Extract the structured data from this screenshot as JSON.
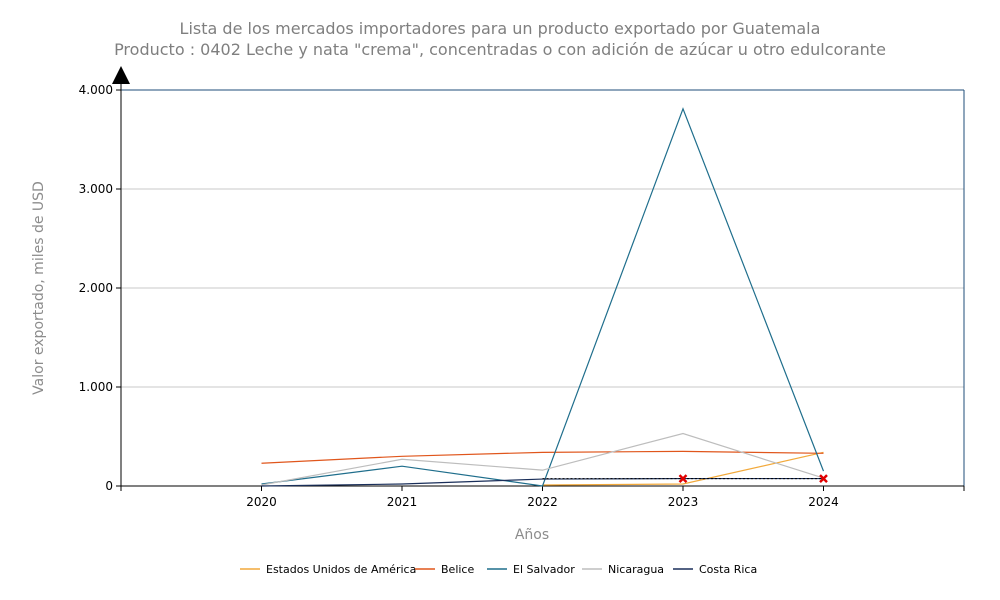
{
  "chart_data": {
    "type": "line",
    "title": "Lista de los mercados importadores para un producto exportado por Guatemala",
    "subtitle": "Producto : 0402 Leche y nata \"crema\", concentradas o con adición de azúcar u otro edulcorante",
    "xlabel": "Años",
    "ylabel": "Valor exportado, miles de USD",
    "x": [
      "2020",
      "2021",
      "2022",
      "2023",
      "2024"
    ],
    "xlim": [
      2019,
      2025
    ],
    "ylim": [
      0,
      4000
    ],
    "yticks": [
      0,
      1000,
      2000,
      3000,
      4000
    ],
    "ytick_labels": [
      "0",
      "1.000",
      "2.000",
      "3.000",
      "4.000"
    ],
    "grid": true,
    "legend_position": "bottom",
    "series": [
      {
        "name": "Estados Unidos de América",
        "color": "#f2a93b",
        "values": [
          null,
          null,
          10,
          20,
          340
        ]
      },
      {
        "name": "Belice",
        "color": "#e0561c",
        "values": [
          230,
          300,
          340,
          350,
          330
        ]
      },
      {
        "name": "El Salvador",
        "color": "#1f6e8c",
        "values": [
          20,
          200,
          0,
          3810,
          150
        ]
      },
      {
        "name": "Nicaragua",
        "color": "#bdbdbd",
        "values": [
          10,
          270,
          160,
          530,
          80
        ]
      },
      {
        "name": "Costa Rica",
        "color": "#1a2f5a",
        "values": [
          0,
          20,
          70,
          75,
          75
        ]
      }
    ],
    "missing_markers": [
      {
        "x": "2023",
        "y": 75
      },
      {
        "x": "2024",
        "y": 75
      }
    ]
  }
}
